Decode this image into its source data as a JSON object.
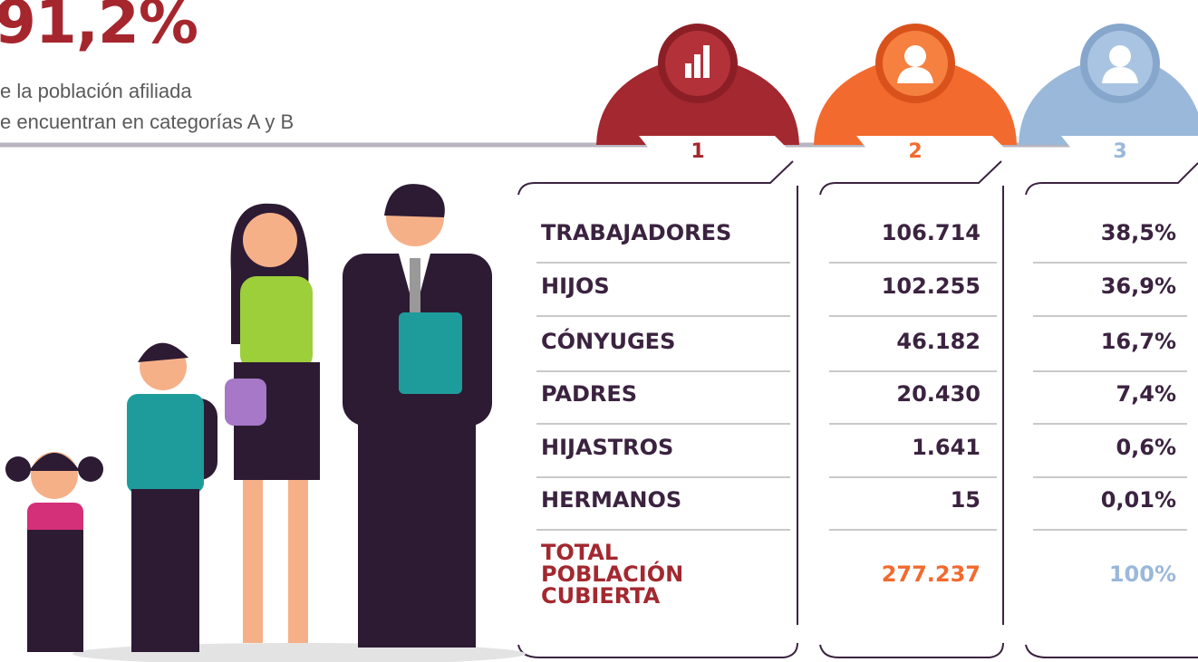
{
  "header": {
    "headline": "91,2%",
    "lines": [
      "e la población afiliada",
      "e encuentran en categorías A y B"
    ]
  },
  "columns": [
    "1",
    "2",
    "3"
  ],
  "table": {
    "rows": [
      [
        "TRABAJADORES",
        "106.714",
        "38,5%"
      ],
      [
        "HIJOS",
        "102.255",
        "36,9%"
      ],
      [
        "CÓNYUGES",
        "46.182",
        "16,7%"
      ],
      [
        "PADRES",
        "20.430",
        "7,4%"
      ],
      [
        "HIJASTROS",
        "1.641",
        "0,6%"
      ],
      [
        "HERMANOS",
        "15",
        "0,01%"
      ]
    ],
    "total": [
      "TOTAL\nPOBLACIÓN\nCUBIERTA",
      "277.237",
      "100%"
    ]
  }
}
